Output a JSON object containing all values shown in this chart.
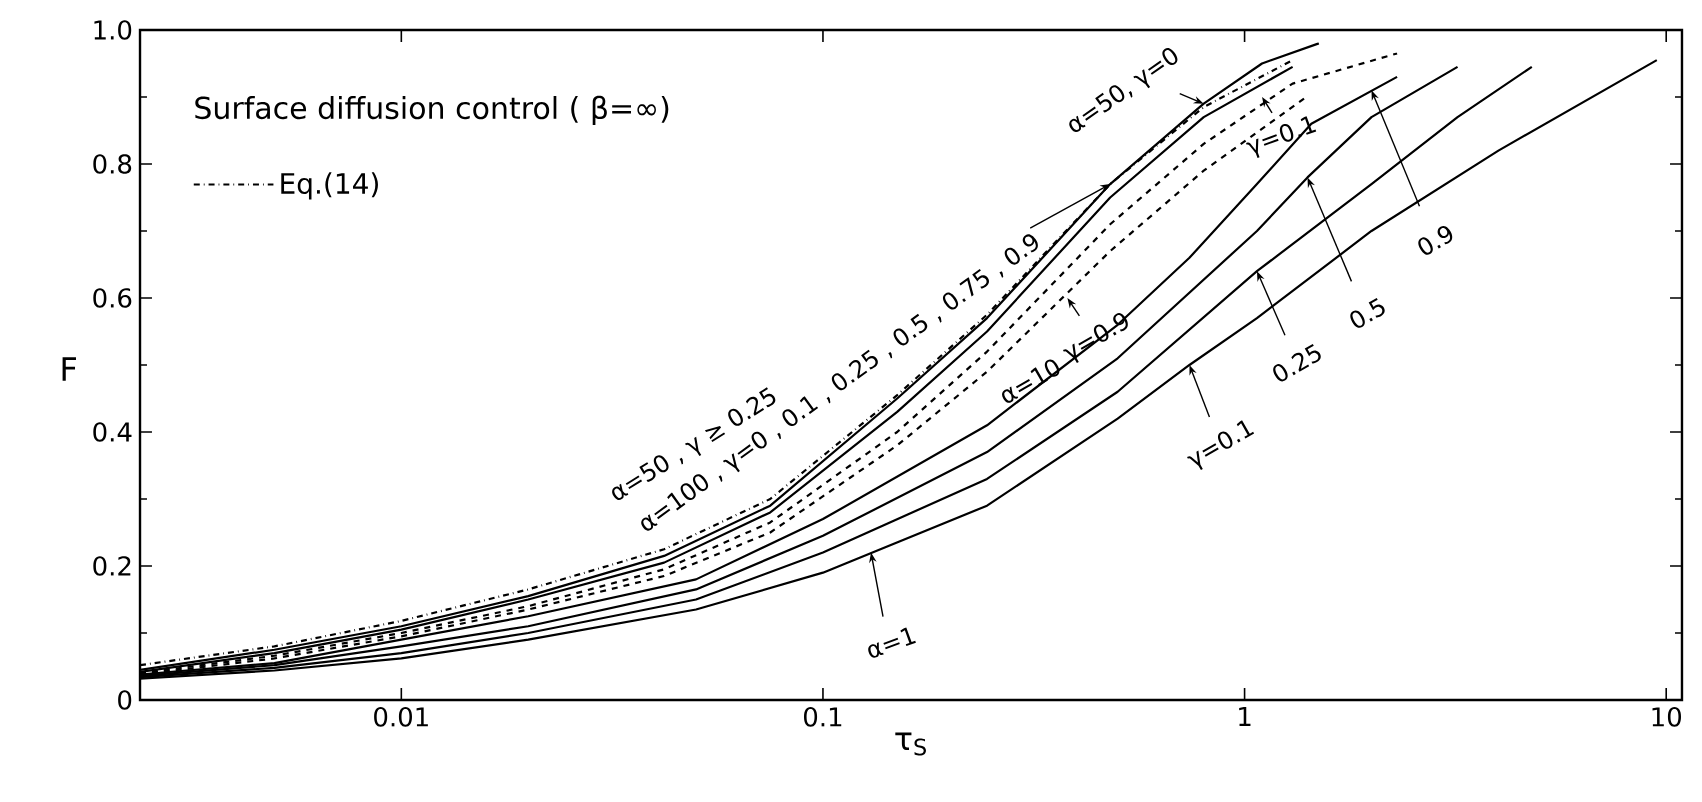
{
  "chart_data": {
    "type": "line",
    "xlabel": "τ$_{S}$",
    "ylabel": "F",
    "log": "x",
    "legend": "top left",
    "marker": "none",
    "xlim": [
      0.0024,
      10.9
    ],
    "ylim": [
      0,
      1
    ],
    "xticks": [
      0.01,
      0.1,
      1,
      10
    ],
    "yticks": [
      0,
      0.2,
      0.4,
      0.6,
      0.8,
      {
        "value": 1,
        "label": "1.0"
      }
    ],
    "series": [
      {
        "name": "Eq.(14)",
        "color": "#000000",
        "line_style": "dashdot",
        "x": [
          0.0024,
          0.005,
          0.01,
          0.02,
          0.042,
          0.075,
          0.15,
          0.245,
          0.48,
          0.8,
          1.3
        ],
        "values": [
          0.052,
          0.08,
          0.118,
          0.165,
          0.225,
          0.3,
          0.455,
          0.575,
          0.77,
          0.885,
          0.955
        ]
      },
      {
        "color": "#000000",
        "line_style": "solid",
        "x": [
          0.0024,
          0.005,
          0.01,
          0.02,
          0.042,
          0.075,
          0.15,
          0.245,
          0.48,
          0.8,
          1.1,
          1.5
        ],
        "values": [
          0.045,
          0.075,
          0.11,
          0.155,
          0.215,
          0.29,
          0.45,
          0.57,
          0.77,
          0.89,
          0.95,
          0.98
        ]
      },
      {
        "color": "#000000",
        "line_style": "solid",
        "x": [
          0.0024,
          0.005,
          0.01,
          0.02,
          0.042,
          0.075,
          0.15,
          0.245,
          0.48,
          0.8,
          1.3
        ],
        "values": [
          0.042,
          0.07,
          0.105,
          0.15,
          0.205,
          0.28,
          0.43,
          0.55,
          0.75,
          0.87,
          0.945
        ]
      },
      {
        "color": "#000000",
        "line_style": "dashed",
        "x": [
          0.0024,
          0.005,
          0.01,
          0.02,
          0.042,
          0.075,
          0.15,
          0.245,
          0.48,
          0.8,
          1.3,
          2.3
        ],
        "values": [
          0.04,
          0.066,
          0.1,
          0.14,
          0.195,
          0.265,
          0.4,
          0.52,
          0.71,
          0.83,
          0.92,
          0.965
        ]
      },
      {
        "color": "#000000",
        "line_style": "dashed",
        "x": [
          0.0024,
          0.005,
          0.01,
          0.02,
          0.042,
          0.075,
          0.15,
          0.245,
          0.48,
          0.8,
          1.4
        ],
        "values": [
          0.038,
          0.062,
          0.095,
          0.135,
          0.185,
          0.25,
          0.38,
          0.49,
          0.67,
          0.79,
          0.9
        ]
      },
      {
        "color": "#000000",
        "line_style": "solid",
        "x": [
          0.0024,
          0.005,
          0.01,
          0.02,
          0.05,
          0.1,
          0.245,
          0.5,
          0.74,
          1.07,
          1.44,
          2.3
        ],
        "values": [
          0.038,
          0.055,
          0.09,
          0.125,
          0.18,
          0.27,
          0.41,
          0.56,
          0.66,
          0.77,
          0.86,
          0.93
        ]
      },
      {
        "color": "#000000",
        "line_style": "solid",
        "x": [
          0.0024,
          0.005,
          0.01,
          0.02,
          0.05,
          0.1,
          0.245,
          0.5,
          1.07,
          1.41,
          2,
          3.2
        ],
        "values": [
          0.036,
          0.052,
          0.08,
          0.11,
          0.165,
          0.245,
          0.37,
          0.51,
          0.7,
          0.78,
          0.87,
          0.945
        ]
      },
      {
        "color": "#000000",
        "line_style": "solid",
        "x": [
          0.0024,
          0.005,
          0.01,
          0.02,
          0.05,
          0.1,
          0.245,
          0.5,
          1.07,
          2,
          3.2,
          4.8
        ],
        "values": [
          0.034,
          0.048,
          0.07,
          0.1,
          0.15,
          0.22,
          0.33,
          0.46,
          0.64,
          0.77,
          0.87,
          0.945
        ]
      },
      {
        "color": "#000000",
        "line_style": "solid",
        "x": [
          0.0024,
          0.005,
          0.01,
          0.02,
          0.05,
          0.1,
          0.245,
          0.5,
          0.74,
          1.07,
          2,
          4,
          9.5
        ],
        "values": [
          0.032,
          0.044,
          0.062,
          0.09,
          0.135,
          0.19,
          0.29,
          0.42,
          0.5,
          0.57,
          0.7,
          0.82,
          0.955
        ]
      }
    ],
    "annotations": [
      "Surface diffusion control ( β=∞)",
      {
        "text": "α=50 , γ ≥ 0.25",
        "x": 0.042,
        "y": 0.215
      },
      {
        "text": "α=100 , γ=0 , 0.1 , 0.25 , 0.5 , 0.75 , 0.9",
        "x": 0.48,
        "y": 0.77
      },
      {
        "text": "α=50, γ=0",
        "x": 0.8,
        "y": 0.89
      },
      {
        "text": "γ=0.1",
        "x": 1.1,
        "y": 0.9
      },
      {
        "text": "γ=0.9",
        "x": 0.38,
        "y": 0.6
      },
      {
        "text": "α=10",
        "x": 0.29,
        "y": 0.53
      },
      {
        "text": "α=1",
        "x": 0.13,
        "y": 0.22
      },
      {
        "text": "γ=0.1",
        "x": 0.74,
        "y": 0.5
      },
      {
        "text": "0.25",
        "x": 1.07,
        "y": 0.64
      },
      {
        "text": "0.5",
        "x": 1.41,
        "y": 0.78
      },
      {
        "text": "0.9",
        "x": 2,
        "y": 0.91
      }
    ]
  }
}
